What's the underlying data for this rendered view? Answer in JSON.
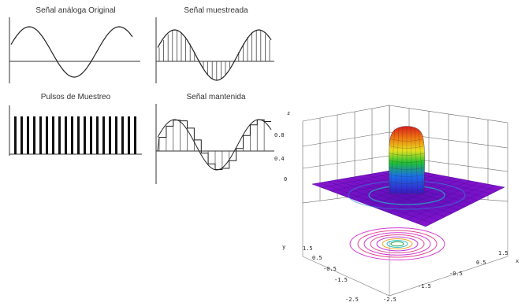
{
  "panels": {
    "original": {
      "title": "Señal análoga Original"
    },
    "sampled": {
      "title": "Señal muestreada"
    },
    "pulses": {
      "title": "Pulsos de Muestreo"
    },
    "held": {
      "title": "Señal mantenida"
    }
  },
  "plot3d": {
    "axis_z_label": "z",
    "axis_y_label": "y",
    "axis_x_label": "x",
    "z_ticks": [
      "0.8",
      "0.4",
      "0"
    ],
    "front_ticks": [
      "1.5",
      "0.5",
      "-0.5",
      "-1.5",
      "-2.5"
    ],
    "right_ticks": [
      "1.5",
      "0.5",
      "-0.5",
      "-1.5",
      "-2.5"
    ],
    "colors": {
      "surface_base": "#7a12c9",
      "peak_top": "#d81e1e",
      "contour": "#d23cd2"
    }
  },
  "pulses": {
    "count": 20
  }
}
